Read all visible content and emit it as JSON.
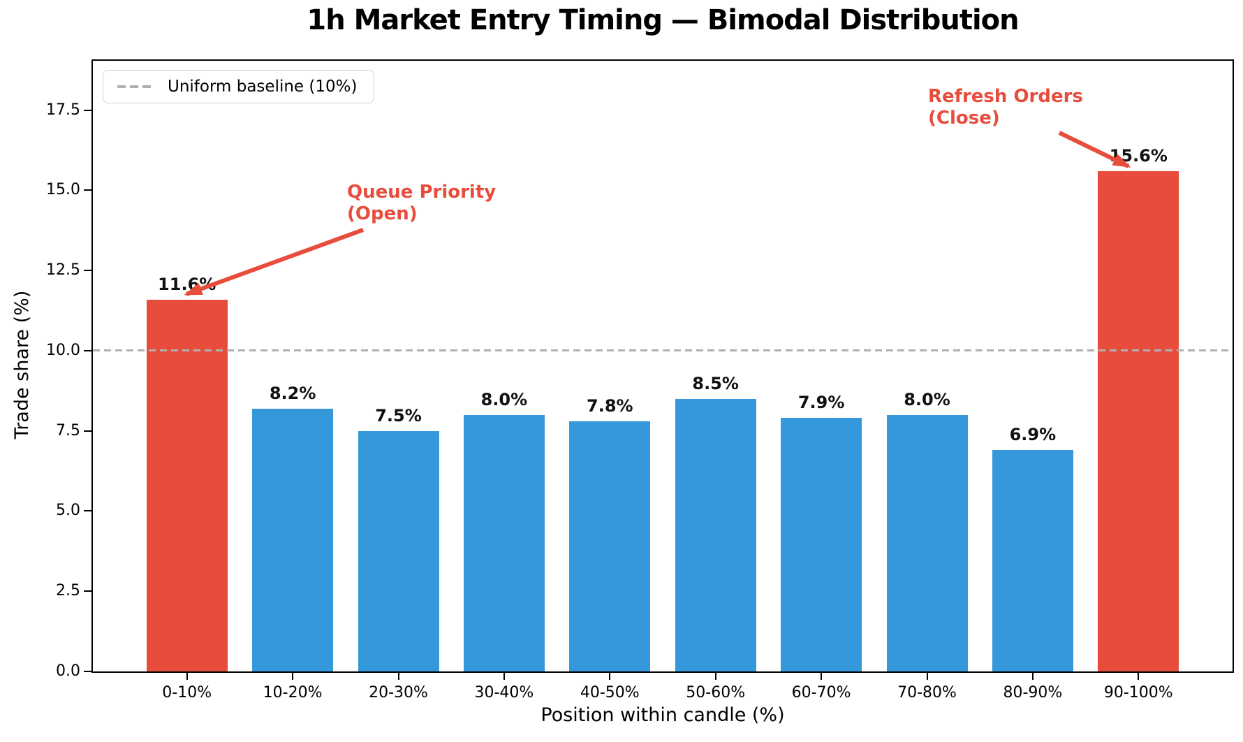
{
  "chart_data": {
    "type": "bar",
    "title": "1h Market Entry Timing — Bimodal Distribution",
    "xlabel": "Position within candle (%)",
    "ylabel": "Trade share (%)",
    "categories": [
      "0-10%",
      "10-20%",
      "20-30%",
      "30-40%",
      "40-50%",
      "50-60%",
      "60-70%",
      "70-80%",
      "80-90%",
      "90-100%"
    ],
    "values": [
      11.6,
      8.2,
      7.5,
      8.0,
      7.8,
      8.5,
      7.9,
      8.0,
      6.9,
      15.6
    ],
    "bar_labels": [
      "11.6%",
      "8.2%",
      "7.5%",
      "8.0%",
      "7.8%",
      "8.5%",
      "7.9%",
      "8.0%",
      "6.9%",
      "15.6%"
    ],
    "highlight_indices": [
      0,
      9
    ],
    "ylim": [
      0,
      19.04
    ],
    "ytick_values": [
      0,
      2.5,
      5,
      7.5,
      10,
      12.5,
      15,
      17.5
    ],
    "ytick_labels": [
      "0.0",
      "2.5",
      "5.0",
      "7.5",
      "10.0",
      "12.5",
      "15.0",
      "17.5"
    ],
    "grid": false,
    "legend_position": "upper left",
    "baseline": {
      "value": 10,
      "legend_label": "Uniform baseline (10%)"
    },
    "colors": {
      "bar_blue": "#3498db",
      "bar_red": "#e74c3c",
      "baseline_gray": "#b0b0b0",
      "annotation_red": "#e74c3c"
    },
    "annotations": [
      {
        "lines": [
          "Queue Priority",
          "(Open)"
        ],
        "target_bar": "0-10%"
      },
      {
        "lines": [
          "Refresh Orders",
          "(Close)"
        ],
        "target_bar": "90-100%"
      }
    ]
  }
}
